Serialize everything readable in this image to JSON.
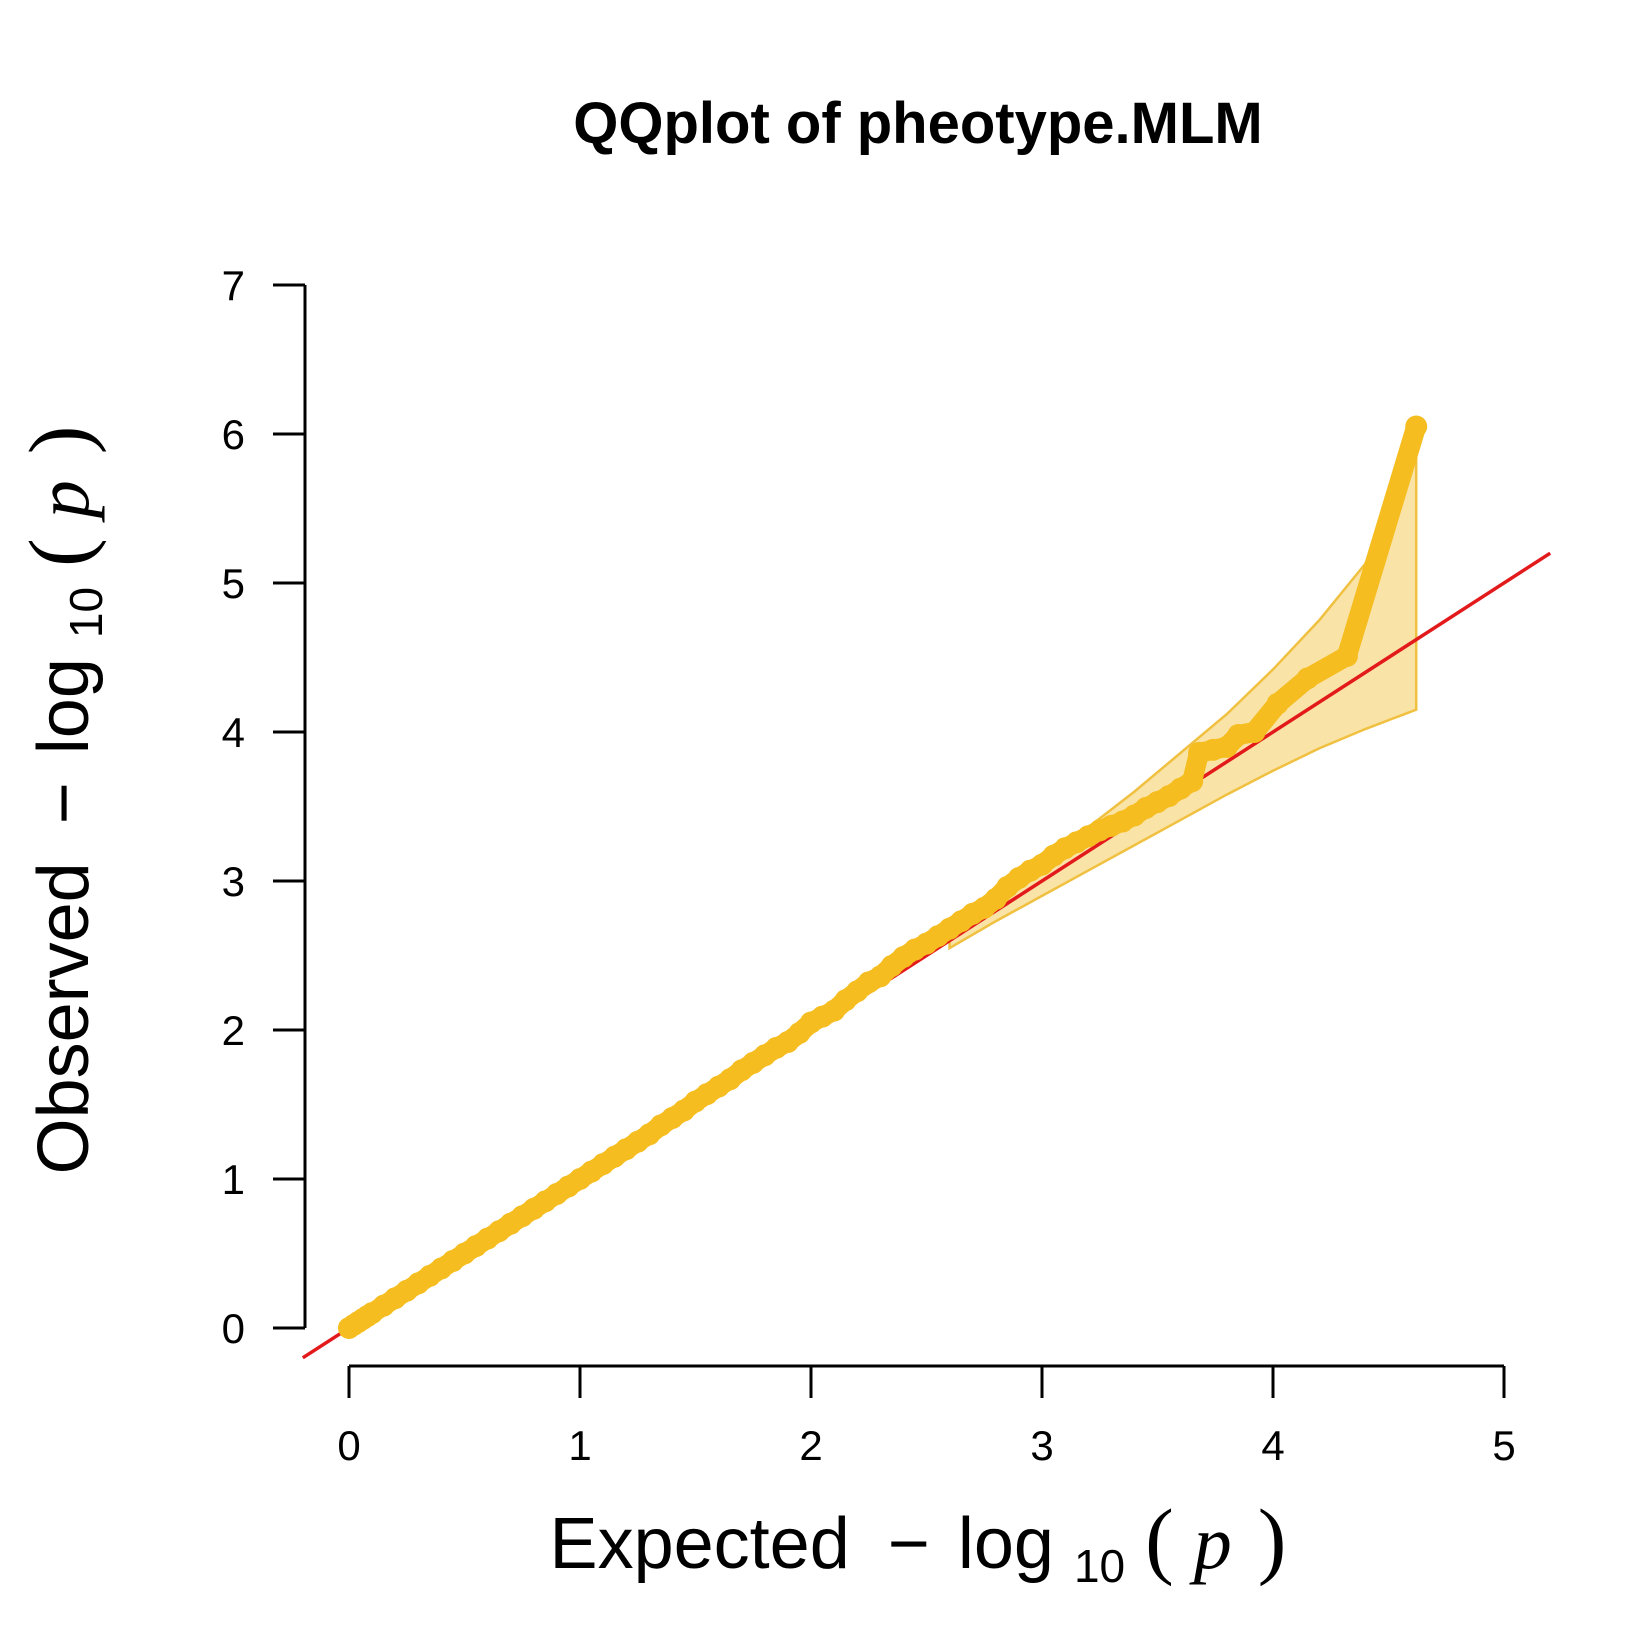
{
  "chart_data": {
    "type": "scatter",
    "title": "QQplot of pheotype.MLM",
    "xlabel": {
      "main": "Expected",
      "minus": "−",
      "log": "log",
      "base": "10",
      "open": "(",
      "var": "p",
      "close": ")"
    },
    "ylabel": {
      "main": "Observed",
      "minus": "−",
      "log": "log",
      "base": "10",
      "open": "(",
      "var": "p",
      "close": ")"
    },
    "xlim": [
      -0.2,
      5.2
    ],
    "ylim": [
      -0.2,
      7.3
    ],
    "x_ticks": [
      0,
      1,
      2,
      3,
      4,
      5
    ],
    "y_ticks": [
      0,
      1,
      2,
      3,
      4,
      5,
      6,
      7
    ],
    "x_tick_labels": [
      "0",
      "1",
      "2",
      "3",
      "4",
      "5"
    ],
    "y_tick_labels": [
      "0",
      "1",
      "2",
      "3",
      "4",
      "5",
      "6",
      "7"
    ],
    "grid": false,
    "colors": {
      "points": "#F5BD1F",
      "reference_line": "#E31A1C",
      "band_fill": "#FAE3A6",
      "band_stroke": "#F0C040",
      "axes": "#000000"
    },
    "reference_line": {
      "from": [
        -0.2,
        -0.2
      ],
      "to": [
        5.2,
        5.2
      ]
    },
    "confidence_band": {
      "x": [
        2.6,
        2.8,
        3.0,
        3.2,
        3.4,
        3.6,
        3.8,
        4.0,
        4.2,
        4.4,
        4.62
      ],
      "upper": [
        2.65,
        2.88,
        3.12,
        3.36,
        3.6,
        3.86,
        4.12,
        4.42,
        4.75,
        5.13,
        5.9
      ],
      "lower": [
        2.55,
        2.73,
        2.9,
        3.07,
        3.24,
        3.41,
        3.58,
        3.74,
        3.89,
        4.02,
        4.15
      ]
    },
    "series": [
      {
        "x": [
          0.0,
          0.02,
          0.04,
          0.06,
          0.08,
          0.1,
          0.15,
          0.2,
          0.25,
          0.3,
          0.35,
          0.4,
          0.45,
          0.5,
          0.55,
          0.6,
          0.65,
          0.7,
          0.75,
          0.8,
          0.85,
          0.9,
          0.95,
          1.0,
          1.05,
          1.1,
          1.15,
          1.2,
          1.25,
          1.3,
          1.35,
          1.4,
          1.45,
          1.5,
          1.55,
          1.6,
          1.65,
          1.7,
          1.75,
          1.8,
          1.85,
          1.9,
          1.95,
          2.0,
          2.05,
          2.1,
          2.15,
          2.2,
          2.25,
          2.3,
          2.35,
          2.4,
          2.45,
          2.5,
          2.55,
          2.6,
          2.65,
          2.7,
          2.75,
          2.8,
          2.85,
          2.9,
          2.95,
          3.0,
          3.05,
          3.1,
          3.15,
          3.2,
          3.25,
          3.3,
          3.35,
          3.4,
          3.45,
          3.5,
          3.55,
          3.6,
          3.65,
          3.68,
          3.74,
          3.8,
          3.85,
          3.92,
          4.02,
          4.15,
          4.32,
          4.62
        ],
        "y": [
          0.0,
          0.02,
          0.04,
          0.06,
          0.08,
          0.1,
          0.15,
          0.2,
          0.25,
          0.3,
          0.35,
          0.4,
          0.45,
          0.5,
          0.55,
          0.6,
          0.65,
          0.7,
          0.75,
          0.8,
          0.85,
          0.9,
          0.95,
          1.0,
          1.05,
          1.1,
          1.15,
          1.2,
          1.25,
          1.3,
          1.36,
          1.41,
          1.46,
          1.52,
          1.57,
          1.62,
          1.67,
          1.73,
          1.78,
          1.83,
          1.88,
          1.92,
          1.98,
          2.05,
          2.09,
          2.13,
          2.2,
          2.26,
          2.32,
          2.36,
          2.43,
          2.49,
          2.54,
          2.58,
          2.63,
          2.68,
          2.73,
          2.78,
          2.82,
          2.88,
          2.96,
          3.02,
          3.07,
          3.11,
          3.17,
          3.22,
          3.26,
          3.3,
          3.34,
          3.37,
          3.4,
          3.44,
          3.49,
          3.53,
          3.57,
          3.62,
          3.67,
          3.86,
          3.88,
          3.9,
          3.98,
          4.0,
          4.19,
          4.36,
          4.51,
          6.05
        ]
      }
    ]
  }
}
